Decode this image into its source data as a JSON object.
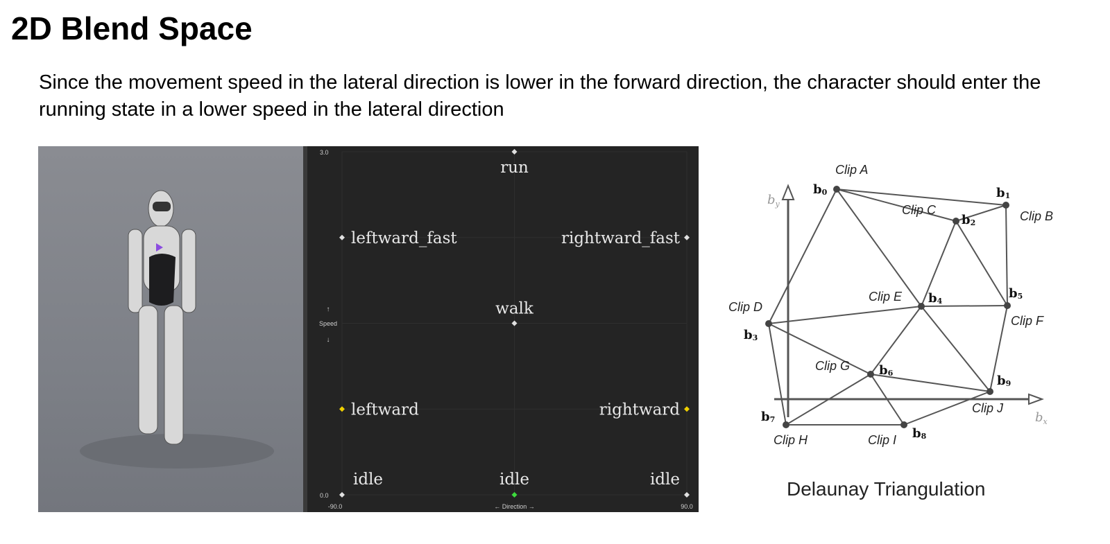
{
  "slide": {
    "title": "2D Blend Space",
    "subtitle": "Since the movement speed in the lateral direction is lower in the forward direction, the character should enter the running state in a lower speed in the lateral direction"
  },
  "blend_space": {
    "y_axis_label": "Speed",
    "x_axis_label": "Direction",
    "y_min_label": "0.0",
    "y_max_label": "3.0",
    "x_min_label": "-90.0",
    "x_max_label": "90.0",
    "x_range": [
      -90,
      90
    ],
    "y_range": [
      0,
      3
    ],
    "samples": [
      {
        "name": "run",
        "direction": 0,
        "speed": 3.0,
        "color": "#e0e0e0"
      },
      {
        "name": "leftward_fast",
        "direction": -90,
        "speed": 2.25,
        "color": "#e0e0e0"
      },
      {
        "name": "rightward_fast",
        "direction": 90,
        "speed": 2.25,
        "color": "#e0e0e0"
      },
      {
        "name": "walk",
        "direction": 0,
        "speed": 1.5,
        "color": "#e0e0e0"
      },
      {
        "name": "leftward",
        "direction": -90,
        "speed": 0.75,
        "color": "#f0d000"
      },
      {
        "name": "rightward",
        "direction": 90,
        "speed": 0.75,
        "color": "#f0d000"
      },
      {
        "name": "idle",
        "direction": -90,
        "speed": 0,
        "color": "#e0e0e0"
      },
      {
        "name": "idle",
        "direction": 0,
        "speed": 0,
        "color": "#3ddc3d"
      },
      {
        "name": "idle",
        "direction": 90,
        "speed": 0,
        "color": "#e0e0e0"
      }
    ]
  },
  "delaunay": {
    "caption": "Delaunay Triangulation",
    "x_axis_label": "bx",
    "y_axis_label": "by",
    "nodes": [
      {
        "b": "b0",
        "clip": "Clip A"
      },
      {
        "b": "b1",
        "clip": "Clip B"
      },
      {
        "b": "b2",
        "clip": "Clip C"
      },
      {
        "b": "b3",
        "clip": "Clip D"
      },
      {
        "b": "b4",
        "clip": "Clip E"
      },
      {
        "b": "b5",
        "clip": "Clip F"
      },
      {
        "b": "b6",
        "clip": "Clip G"
      },
      {
        "b": "b7",
        "clip": "Clip H"
      },
      {
        "b": "b8",
        "clip": "Clip I"
      },
      {
        "b": "b9",
        "clip": "Clip J"
      }
    ],
    "edges": [
      [
        0,
        1
      ],
      [
        0,
        2
      ],
      [
        2,
        1
      ],
      [
        0,
        3
      ],
      [
        0,
        4
      ],
      [
        2,
        4
      ],
      [
        2,
        5
      ],
      [
        1,
        5
      ],
      [
        4,
        5
      ],
      [
        3,
        4
      ],
      [
        3,
        6
      ],
      [
        3,
        7
      ],
      [
        4,
        6
      ],
      [
        4,
        9
      ],
      [
        5,
        9
      ],
      [
        6,
        9
      ],
      [
        6,
        7
      ],
      [
        6,
        8
      ],
      [
        7,
        8
      ],
      [
        8,
        9
      ]
    ]
  }
}
